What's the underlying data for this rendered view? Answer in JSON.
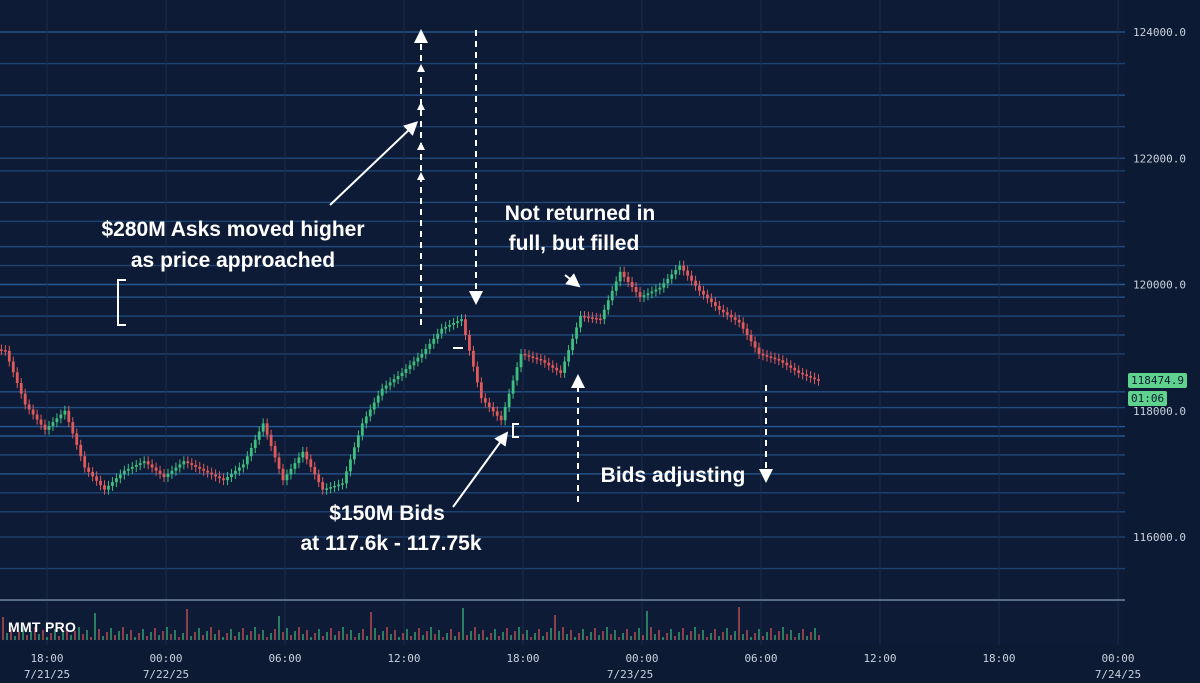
{
  "brand": "MMT PRO",
  "price_tag": {
    "value": "118474.9",
    "timer": "01:06"
  },
  "annotations": [
    {
      "id": "asks",
      "lines": [
        "$280M Asks moved higher",
        "as price approached"
      ]
    },
    {
      "id": "not-returned",
      "lines": [
        "Not returned in",
        "full, but filled"
      ]
    },
    {
      "id": "bids",
      "lines": [
        "$150M Bids",
        "at 117.6k - 117.75k"
      ]
    },
    {
      "id": "bids-adjusting",
      "lines": [
        "Bids adjusting"
      ]
    }
  ],
  "chart_data": {
    "type": "line",
    "title": "",
    "y_axis": {
      "side": "right",
      "ticks": [
        "124000.0",
        "122000.0",
        "120000.0",
        "118000.0",
        "116000.0"
      ],
      "range": [
        114400,
        124600
      ]
    },
    "x_axis": {
      "time_ticks": [
        "18:00",
        "00:00",
        "06:00",
        "12:00",
        "18:00",
        "00:00",
        "06:00",
        "12:00",
        "18:00",
        "00:00"
      ],
      "date_labels": [
        "7/21/25",
        "7/22/25",
        "7/23/25",
        "7/24/25"
      ]
    },
    "series": [
      {
        "x": [
          "7/21 15:00",
          "7/21 16:00",
          "7/21 17:00",
          "7/21 18:00",
          "7/21 19:00",
          "7/21 20:00",
          "7/21 21:00",
          "7/21 22:00",
          "7/21 23:00",
          "7/22 00:00",
          "7/22 01:00",
          "7/22 02:00",
          "7/22 03:00",
          "7/22 04:00",
          "7/22 05:00",
          "7/22 06:00",
          "7/22 07:00",
          "7/22 08:00",
          "7/22 09:00",
          "7/22 10:00",
          "7/22 11:00",
          "7/22 12:00",
          "7/22 13:00",
          "7/22 14:00",
          "7/22 15:00",
          "7/22 16:00",
          "7/22 17:00",
          "7/22 18:00",
          "7/22 19:00",
          "7/22 20:00",
          "7/22 21:00",
          "7/22 22:00",
          "7/22 23:00",
          "7/23 00:00",
          "7/23 01:00",
          "7/23 02:00",
          "7/23 03:00",
          "7/23 04:00",
          "7/23 05:00",
          "7/23 06:00",
          "7/23 07:00",
          "7/23 08:00",
          "7/23 09:00"
        ],
        "values": [
          119000,
          118950,
          118100,
          117700,
          118000,
          117100,
          116750,
          117050,
          117200,
          116950,
          117200,
          117050,
          116900,
          117150,
          117800,
          116900,
          117350,
          116750,
          116850,
          117800,
          118350,
          118600,
          118900,
          119300,
          119450,
          118200,
          117850,
          118900,
          118800,
          118600,
          119500,
          119450,
          120200,
          119800,
          119950,
          120300,
          119900,
          119600,
          119400,
          118900,
          118800,
          118600,
          118474.9
        ]
      }
    ],
    "order_book_levels": [
      {
        "price": 124000,
        "side": "ask",
        "strength": 0.7
      },
      {
        "price": 123500,
        "side": "ask",
        "strength": 0.4
      },
      {
        "price": 123000,
        "side": "ask",
        "strength": 0.6
      },
      {
        "price": 122500,
        "side": "ask",
        "strength": 0.35
      },
      {
        "price": 122000,
        "side": "ask",
        "strength": 0.45
      },
      {
        "price": 121800,
        "side": "ask",
        "strength": 0.3
      },
      {
        "price": 121300,
        "side": "ask",
        "strength": 0.5
      },
      {
        "price": 121000,
        "side": "ask",
        "strength": 0.35
      },
      {
        "price": 120600,
        "side": "ask",
        "strength": 0.55
      },
      {
        "price": 120300,
        "side": "ask",
        "strength": 0.4
      },
      {
        "price": 120000,
        "side": "ask",
        "strength": 0.8
      },
      {
        "price": 119800,
        "side": "ask",
        "strength": 0.6
      },
      {
        "price": 119500,
        "side": "ask",
        "strength": 0.5
      },
      {
        "price": 119200,
        "side": "ask",
        "strength": 0.45
      },
      {
        "price": 118900,
        "side": "ask",
        "strength": 0.35
      },
      {
        "price": 118300,
        "side": "bid",
        "strength": 0.7
      },
      {
        "price": 118050,
        "side": "bid",
        "strength": 0.55
      },
      {
        "price": 117750,
        "side": "bid",
        "strength": 0.85
      },
      {
        "price": 117600,
        "side": "bid",
        "strength": 0.8
      },
      {
        "price": 117300,
        "side": "bid",
        "strength": 0.5
      },
      {
        "price": 117000,
        "side": "bid",
        "strength": 0.65
      },
      {
        "price": 116700,
        "side": "bid",
        "strength": 0.4
      },
      {
        "price": 116400,
        "side": "bid",
        "strength": 0.35
      },
      {
        "price": 116000,
        "side": "bid",
        "strength": 0.3
      },
      {
        "price": 115500,
        "side": "bid",
        "strength": 0.4
      },
      {
        "price": 115000,
        "side": "bid",
        "strength": 0.3
      }
    ],
    "colors": {
      "background": "#0c1a33",
      "up": "#3fbf7f",
      "down": "#e05a5a",
      "levels": "#2f6fb3",
      "tag": "#5fd38d"
    }
  }
}
